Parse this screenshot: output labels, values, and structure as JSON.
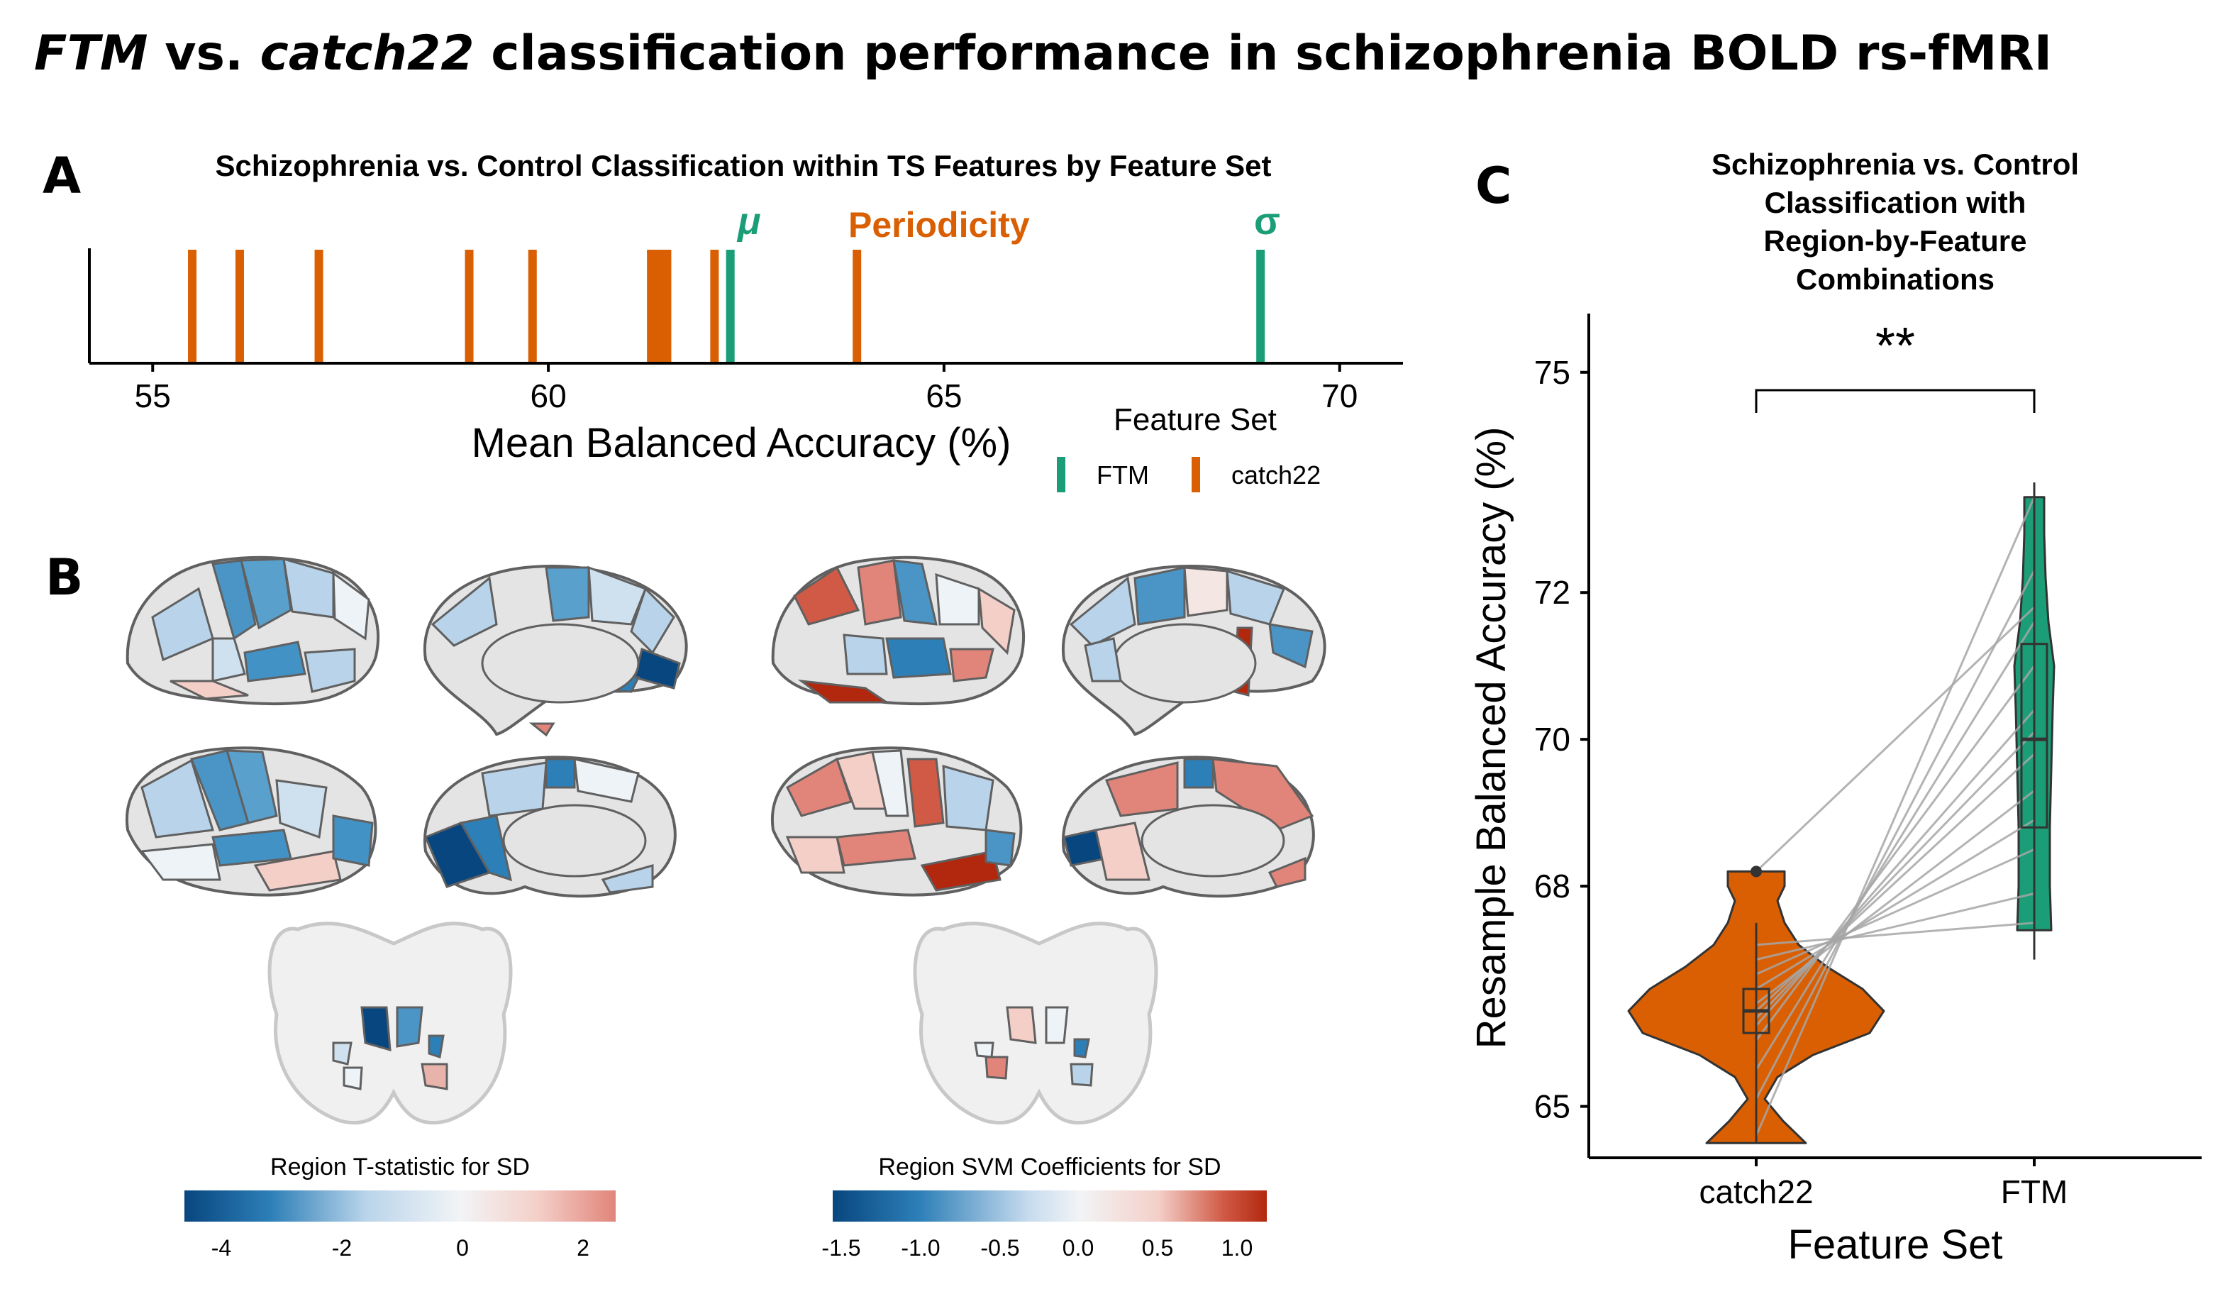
{
  "figure_title_italic_1": "FTM",
  "figure_title_mid": " vs. ",
  "figure_title_italic_2": "catch22",
  "figure_title_rest": " classification performance in schizophrenia BOLD rs-fMRI",
  "colors": {
    "ftm": "#1b9e77",
    "catch22": "#d95f02",
    "neg_strong": "#08467f",
    "neg_mid": "#4292c6",
    "neg_light": "#b9d4ea",
    "neutral": "#f2f4f6",
    "pos_light": "#f4cfc8",
    "pos_mid": "#e1857a",
    "pos_strong": "#b2280e"
  },
  "panel_a": {
    "letter": "A",
    "annotations": {
      "mu": "μ",
      "periodicity": "Periodicity",
      "sigma": "σ"
    },
    "legend": {
      "title": "Feature Set",
      "items": [
        "FTM",
        "catch22"
      ]
    }
  },
  "panel_b": {
    "letter": "B",
    "colorbar_left": {
      "title": "Region T-statistic for SD",
      "ticks": [
        "-4",
        "-2",
        "0",
        "2"
      ]
    },
    "colorbar_right": {
      "title": "Region SVM Coefficients for SD",
      "ticks": [
        "-1.5",
        "-1.0",
        "-0.5",
        "0.0",
        "0.5",
        "1.0"
      ]
    }
  },
  "panel_c": {
    "letter": "C",
    "significance": "**"
  },
  "chart_data": [
    {
      "type": "rug",
      "title": "Schizophrenia vs. Control Classification within TS Features by Feature Set",
      "xlabel": "Mean Balanced Accuracy (%)",
      "xlim": [
        54.2,
        70.8
      ],
      "xticks": [
        "55",
        "60",
        "65",
        "70"
      ],
      "legend_position": "bottom-right",
      "series": [
        {
          "name": "FTM",
          "values": [
            62.3,
            69.0
          ]
        },
        {
          "name": "catch22",
          "values": [
            55.5,
            56.1,
            57.1,
            59.0,
            59.8,
            61.3,
            61.4,
            61.5,
            62.1,
            63.9
          ]
        }
      ]
    },
    {
      "type": "violin",
      "title": "Schizophrenia vs. Control Classification with Region-by-Feature Combinations",
      "xlabel": "Feature Set",
      "ylabel": "Resample Balanced Accuracy (%)",
      "categories": [
        "catch22",
        "FTM"
      ],
      "ylim": [
        64.3,
        75.8
      ],
      "yticks": [
        "65",
        "68",
        "70",
        "72",
        "75"
      ],
      "box": [
        {
          "category": "catch22",
          "min": 64.5,
          "q1": 66.0,
          "median": 66.3,
          "q3": 66.6,
          "max": 67.5,
          "outlier": 68.2
        },
        {
          "category": "FTM",
          "min": 67.0,
          "q1": 68.8,
          "median": 70.0,
          "q3": 71.3,
          "max": 73.5
        }
      ],
      "paired_lines": [
        [
          64.6,
          73.3
        ],
        [
          65.1,
          72.3
        ],
        [
          65.5,
          71.6
        ],
        [
          65.9,
          71.0
        ],
        [
          66.1,
          70.4
        ],
        [
          66.2,
          70.1
        ],
        [
          66.3,
          69.8
        ],
        [
          66.4,
          69.3
        ],
        [
          66.6,
          68.9
        ],
        [
          66.8,
          68.5
        ],
        [
          67.0,
          67.9
        ],
        [
          67.2,
          67.5
        ],
        [
          68.2,
          71.8
        ]
      ]
    }
  ]
}
